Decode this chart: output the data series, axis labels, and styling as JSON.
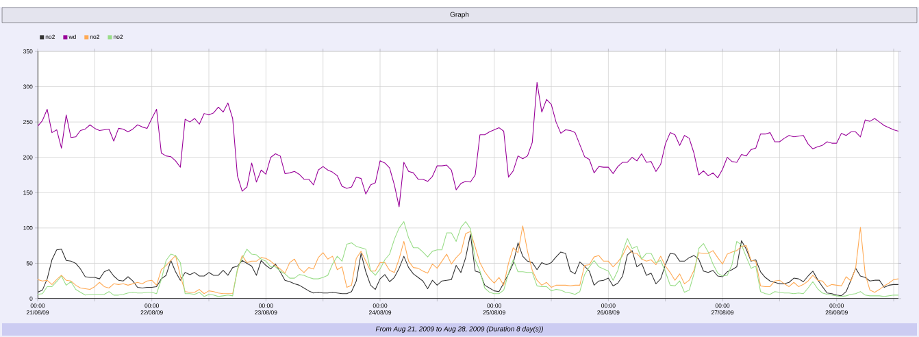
{
  "chart_data": {
    "type": "line",
    "title": "Graph",
    "annotations": [
      "From Aug 21, 2009 to Aug 28, 2009 (Duration 8 day(s))"
    ],
    "xlim": [
      "2009-08-21T00:00",
      "2009-08-28T13:00"
    ],
    "ylim": [
      0,
      350
    ],
    "yticks": [
      0,
      50,
      100,
      150,
      200,
      250,
      300,
      350
    ],
    "xticks": [
      {
        "value": "2009-08-21T00:00",
        "label": "00:00 21/08/09"
      },
      {
        "value": "2009-08-21T12:00",
        "label": null
      },
      {
        "value": "2009-08-22T00:00",
        "label": "00:00 22/08/09"
      },
      {
        "value": "2009-08-22T12:00",
        "label": null
      },
      {
        "value": "2009-08-23T00:00",
        "label": "00:00 23/08/09"
      },
      {
        "value": "2009-08-23T12:00",
        "label": null
      },
      {
        "value": "2009-08-24T00:00",
        "label": "00:00 24/08/09"
      },
      {
        "value": "2009-08-24T12:00",
        "label": null
      },
      {
        "value": "2009-08-25T00:00",
        "label": "00:00 25/08/09"
      },
      {
        "value": "2009-08-25T12:00",
        "label": null
      },
      {
        "value": "2009-08-26T00:00",
        "label": "00:00 26/08/09"
      },
      {
        "value": "2009-08-26T12:00",
        "label": null
      },
      {
        "value": "2009-08-27T00:00",
        "label": "00:00 27/08/09"
      },
      {
        "value": "2009-08-27T12:00",
        "label": null
      },
      {
        "value": "2009-08-28T00:00",
        "label": "00:00 28/08/09"
      },
      {
        "value": "2009-08-28T12:00",
        "label": null
      }
    ],
    "grid": true,
    "legend": "top left",
    "marker": "none",
    "line_style": "solid",
    "x": [
      "2009-08-21T00:00",
      "2009-08-21T01:00",
      "2009-08-21T02:00",
      "2009-08-21T03:00",
      "2009-08-21T04:00",
      "2009-08-21T05:00",
      "2009-08-21T06:00",
      "2009-08-21T07:00",
      "2009-08-21T08:00",
      "2009-08-21T09:00",
      "2009-08-21T10:00",
      "2009-08-21T11:00",
      "2009-08-21T12:00",
      "2009-08-21T13:00",
      "2009-08-21T14:00",
      "2009-08-21T15:00",
      "2009-08-21T16:00",
      "2009-08-21T17:00",
      "2009-08-21T18:00",
      "2009-08-21T19:00",
      "2009-08-21T20:00",
      "2009-08-21T21:00",
      "2009-08-21T22:00",
      "2009-08-21T23:00",
      "2009-08-22T00:00",
      "2009-08-22T01:00",
      "2009-08-22T02:00",
      "2009-08-22T03:00",
      "2009-08-22T04:00",
      "2009-08-22T05:00",
      "2009-08-22T06:00",
      "2009-08-22T07:00",
      "2009-08-22T08:00",
      "2009-08-22T09:00",
      "2009-08-22T10:00",
      "2009-08-22T11:00",
      "2009-08-22T12:00",
      "2009-08-22T13:00",
      "2009-08-22T14:00",
      "2009-08-22T15:00",
      "2009-08-22T16:00",
      "2009-08-22T17:00",
      "2009-08-22T18:00",
      "2009-08-22T19:00",
      "2009-08-22T20:00",
      "2009-08-22T21:00",
      "2009-08-22T22:00",
      "2009-08-22T23:00",
      "2009-08-23T00:00",
      "2009-08-23T01:00",
      "2009-08-23T02:00",
      "2009-08-23T03:00",
      "2009-08-23T04:00",
      "2009-08-23T05:00",
      "2009-08-23T06:00",
      "2009-08-23T07:00",
      "2009-08-23T08:00",
      "2009-08-23T09:00",
      "2009-08-23T10:00",
      "2009-08-23T11:00",
      "2009-08-23T12:00",
      "2009-08-23T13:00",
      "2009-08-23T14:00",
      "2009-08-23T15:00",
      "2009-08-23T16:00",
      "2009-08-23T17:00",
      "2009-08-23T18:00",
      "2009-08-23T19:00",
      "2009-08-23T20:00",
      "2009-08-23T21:00",
      "2009-08-23T22:00",
      "2009-08-23T23:00",
      "2009-08-24T00:00",
      "2009-08-24T01:00",
      "2009-08-24T02:00",
      "2009-08-24T03:00",
      "2009-08-24T04:00",
      "2009-08-24T05:00",
      "2009-08-24T06:00",
      "2009-08-24T07:00",
      "2009-08-24T08:00",
      "2009-08-24T09:00",
      "2009-08-24T10:00",
      "2009-08-24T11:00",
      "2009-08-24T12:00",
      "2009-08-24T13:00",
      "2009-08-24T14:00",
      "2009-08-24T15:00",
      "2009-08-24T16:00",
      "2009-08-24T17:00",
      "2009-08-24T18:00",
      "2009-08-24T19:00",
      "2009-08-24T20:00",
      "2009-08-24T21:00",
      "2009-08-24T22:00",
      "2009-08-24T23:00",
      "2009-08-25T00:00",
      "2009-08-25T01:00",
      "2009-08-25T02:00",
      "2009-08-25T03:00",
      "2009-08-25T04:00",
      "2009-08-25T05:00",
      "2009-08-25T06:00",
      "2009-08-25T07:00",
      "2009-08-25T08:00",
      "2009-08-25T09:00",
      "2009-08-25T10:00",
      "2009-08-25T11:00",
      "2009-08-25T12:00",
      "2009-08-25T13:00",
      "2009-08-25T14:00",
      "2009-08-25T15:00",
      "2009-08-25T16:00",
      "2009-08-25T17:00",
      "2009-08-25T18:00",
      "2009-08-25T19:00",
      "2009-08-25T20:00",
      "2009-08-25T21:00",
      "2009-08-25T22:00",
      "2009-08-25T23:00",
      "2009-08-26T00:00",
      "2009-08-26T01:00",
      "2009-08-26T02:00",
      "2009-08-26T03:00",
      "2009-08-26T04:00",
      "2009-08-26T05:00",
      "2009-08-26T06:00",
      "2009-08-26T07:00",
      "2009-08-26T08:00",
      "2009-08-26T09:00",
      "2009-08-26T10:00",
      "2009-08-26T11:00",
      "2009-08-26T12:00",
      "2009-08-26T13:00",
      "2009-08-26T14:00",
      "2009-08-26T15:00",
      "2009-08-26T16:00",
      "2009-08-26T17:00",
      "2009-08-26T18:00",
      "2009-08-26T19:00",
      "2009-08-26T20:00",
      "2009-08-26T21:00",
      "2009-08-26T22:00",
      "2009-08-26T23:00",
      "2009-08-27T00:00",
      "2009-08-27T01:00",
      "2009-08-27T02:00",
      "2009-08-27T03:00",
      "2009-08-27T04:00",
      "2009-08-27T05:00",
      "2009-08-27T06:00",
      "2009-08-27T07:00",
      "2009-08-27T08:00",
      "2009-08-27T09:00",
      "2009-08-27T10:00",
      "2009-08-27T11:00",
      "2009-08-27T12:00",
      "2009-08-27T13:00",
      "2009-08-27T14:00",
      "2009-08-27T15:00",
      "2009-08-27T16:00",
      "2009-08-27T17:00",
      "2009-08-27T18:00",
      "2009-08-27T19:00",
      "2009-08-27T20:00",
      "2009-08-27T21:00",
      "2009-08-27T22:00",
      "2009-08-27T23:00",
      "2009-08-28T00:00",
      "2009-08-28T01:00",
      "2009-08-28T02:00",
      "2009-08-28T03:00",
      "2009-08-28T04:00",
      "2009-08-28T05:00",
      "2009-08-28T06:00",
      "2009-08-28T07:00",
      "2009-08-28T08:00",
      "2009-08-28T09:00",
      "2009-08-28T10:00",
      "2009-08-28T11:00",
      "2009-08-28T12:00",
      "2009-08-28T13:00"
    ],
    "series": [
      {
        "name": "no2",
        "color": "#333333",
        "values": [
          9,
          12,
          28,
          55,
          69,
          70,
          54,
          53,
          50,
          42,
          31,
          30,
          30,
          28,
          38,
          41,
          32,
          26,
          25,
          31,
          25,
          16,
          15,
          16,
          16,
          17,
          28,
          33,
          54,
          38,
          26,
          37,
          34,
          37,
          32,
          32,
          37,
          33,
          33,
          40,
          33,
          44,
          46,
          54,
          50,
          46,
          33,
          54,
          47,
          42,
          49,
          38,
          26,
          24,
          21,
          19,
          15,
          11,
          8,
          9,
          8,
          8,
          9,
          8,
          7,
          7,
          10,
          25,
          64,
          38,
          19,
          13,
          28,
          34,
          24,
          30,
          43,
          60,
          44,
          35,
          30,
          25,
          14,
          26,
          19,
          25,
          26,
          27,
          47,
          37,
          58,
          91,
          39,
          37,
          19,
          15,
          11,
          10,
          22,
          35,
          50,
          79,
          60,
          53,
          51,
          41,
          51,
          48,
          51,
          59,
          66,
          64,
          39,
          35,
          52,
          46,
          39,
          19,
          25,
          26,
          29,
          18,
          22,
          32,
          62,
          68,
          45,
          50,
          33,
          36,
          21,
          28,
          48,
          64,
          63,
          53,
          53,
          58,
          61,
          56,
          39,
          37,
          40,
          32,
          31,
          38,
          41,
          45,
          82,
          70,
          53,
          55,
          38,
          30,
          25,
          23,
          21,
          21,
          23,
          29,
          28,
          24,
          32,
          39,
          27,
          17,
          8,
          7,
          5,
          4,
          10,
          26,
          43,
          32,
          30,
          25,
          26,
          26,
          16,
          19,
          20,
          20
        ]
      },
      {
        "name": "wd",
        "color": "#990099",
        "values": [
          244,
          252,
          268,
          235,
          239,
          213,
          260,
          228,
          229,
          238,
          240,
          246,
          241,
          238,
          239,
          240,
          223,
          241,
          240,
          236,
          240,
          246,
          243,
          241,
          255,
          268,
          206,
          202,
          201,
          195,
          186,
          254,
          250,
          255,
          247,
          262,
          260,
          263,
          271,
          264,
          277,
          255,
          174,
          152,
          158,
          192,
          165,
          182,
          176,
          200,
          205,
          202,
          177,
          178,
          180,
          176,
          169,
          169,
          161,
          182,
          187,
          182,
          179,
          174,
          159,
          156,
          158,
          172,
          170,
          148,
          161,
          164,
          195,
          192,
          185,
          161,
          130,
          193,
          180,
          178,
          169,
          169,
          166,
          173,
          188,
          188,
          189,
          182,
          154,
          163,
          166,
          165,
          175,
          232,
          232,
          236,
          239,
          242,
          237,
          172,
          181,
          202,
          198,
          202,
          221,
          306,
          264,
          282,
          275,
          250,
          234,
          239,
          238,
          235,
          218,
          201,
          197,
          178,
          187,
          186,
          186,
          177,
          187,
          193,
          193,
          200,
          195,
          205,
          193,
          194,
          180,
          190,
          219,
          235,
          232,
          217,
          231,
          227,
          206,
          175,
          181,
          174,
          178,
          171,
          183,
          200,
          194,
          193,
          204,
          202,
          211,
          213,
          233,
          233,
          235,
          222,
          222,
          227,
          231,
          229,
          230,
          231,
          219,
          212,
          215,
          217,
          222,
          220,
          220,
          234,
          231,
          236,
          236,
          229,
          253,
          251,
          255,
          250,
          245,
          242,
          239,
          237
        ]
      },
      {
        "name": "no2",
        "color": "#ffaa55",
        "values": [
          27,
          25,
          26,
          20,
          27,
          33,
          26,
          25,
          19,
          15,
          14,
          13,
          17,
          23,
          17,
          15,
          21,
          20,
          21,
          19,
          21,
          23,
          21,
          25,
          26,
          19,
          41,
          47,
          54,
          61,
          32,
          10,
          9,
          9,
          13,
          7,
          11,
          10,
          8,
          7,
          7,
          7,
          40,
          61,
          51,
          53,
          53,
          58,
          57,
          53,
          47,
          42,
          36,
          51,
          56,
          43,
          37,
          44,
          42,
          58,
          65,
          56,
          60,
          41,
          45,
          16,
          19,
          57,
          67,
          53,
          39,
          39,
          51,
          51,
          40,
          37,
          56,
          81,
          53,
          44,
          43,
          39,
          36,
          49,
          43,
          53,
          63,
          49,
          58,
          65,
          92,
          95,
          73,
          51,
          38,
          29,
          22,
          30,
          19,
          50,
          72,
          65,
          103,
          67,
          40,
          26,
          19,
          23,
          16,
          19,
          19,
          19,
          18,
          19,
          19,
          47,
          48,
          59,
          61,
          53,
          53,
          45,
          52,
          61,
          75,
          65,
          64,
          56,
          53,
          55,
          48,
          60,
          46,
          37,
          26,
          35,
          21,
          26,
          40,
          65,
          64,
          64,
          68,
          58,
          49,
          63,
          66,
          68,
          74,
          75,
          54,
          53,
          18,
          17,
          17,
          25,
          26,
          21,
          17,
          23,
          17,
          20,
          25,
          33,
          26,
          25,
          17,
          20,
          19,
          18,
          31,
          25,
          43,
          101,
          35,
          12,
          9,
          13,
          18,
          22,
          27,
          28
        ]
      },
      {
        "name": "no2",
        "color": "#99dd88",
        "values": [
          6,
          7,
          17,
          17,
          24,
          32,
          19,
          24,
          13,
          9,
          5,
          6,
          6,
          6,
          6,
          10,
          5,
          5,
          6,
          8,
          9,
          8,
          8,
          9,
          9,
          7,
          27,
          54,
          63,
          61,
          51,
          7,
          7,
          6,
          9,
          3,
          6,
          5,
          3,
          4,
          5,
          4,
          42,
          57,
          70,
          63,
          62,
          56,
          53,
          45,
          45,
          39,
          35,
          29,
          29,
          34,
          33,
          30,
          28,
          28,
          30,
          33,
          49,
          60,
          53,
          77,
          79,
          74,
          72,
          70,
          40,
          33,
          42,
          55,
          63,
          84,
          100,
          109,
          86,
          72,
          72,
          66,
          59,
          67,
          69,
          69,
          93,
          93,
          81,
          101,
          109,
          99,
          55,
          39,
          15,
          9,
          7,
          7,
          12,
          36,
          55,
          38,
          38,
          37,
          37,
          18,
          17,
          17,
          11,
          13,
          12,
          9,
          8,
          6,
          10,
          34,
          45,
          54,
          45,
          42,
          39,
          26,
          40,
          66,
          85,
          71,
          74,
          56,
          64,
          64,
          51,
          54,
          38,
          19,
          18,
          25,
          9,
          12,
          35,
          71,
          78,
          66,
          49,
          36,
          32,
          33,
          48,
          81,
          76,
          59,
          43,
          46,
          10,
          7,
          6,
          10,
          9,
          8,
          8,
          7,
          8,
          7,
          15,
          24,
          14,
          8,
          6,
          5,
          4,
          3,
          4,
          6,
          7,
          10,
          5,
          4,
          4,
          4,
          3,
          4,
          5,
          5
        ]
      }
    ]
  }
}
